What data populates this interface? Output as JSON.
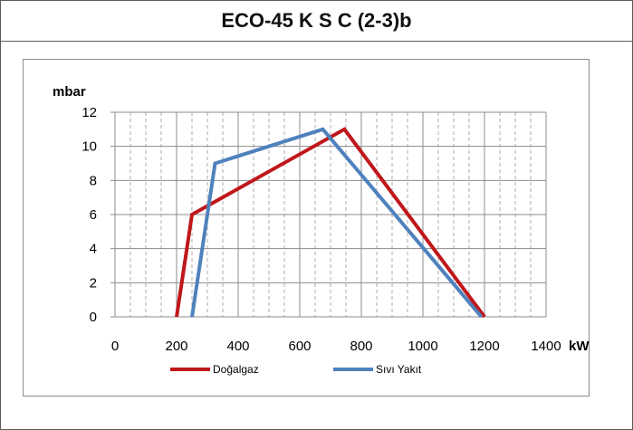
{
  "chart_data": {
    "type": "line",
    "title": "ECO-45 K S C (2-3)b",
    "xlabel": "kW",
    "ylabel": "mbar",
    "xlim": [
      0,
      1400
    ],
    "ylim": [
      0,
      12
    ],
    "x_ticks": [
      "0",
      "200",
      "400",
      "600",
      "800",
      "1000",
      "1200",
      "1400"
    ],
    "y_ticks": [
      "0",
      "2",
      "4",
      "6",
      "8",
      "10",
      "12"
    ],
    "grid": true,
    "legend": "bottom",
    "series": [
      {
        "name": "Doğalgaz",
        "color": "#c0171b",
        "points": [
          [
            200,
            0
          ],
          [
            250,
            6
          ],
          [
            745,
            11
          ],
          [
            1200,
            0
          ]
        ]
      },
      {
        "name": "Sıvı Yakıt",
        "color": "#4f81bd",
        "points": [
          [
            250,
            0
          ],
          [
            325,
            9
          ],
          [
            675,
            11
          ],
          [
            1190,
            0
          ]
        ]
      }
    ]
  }
}
